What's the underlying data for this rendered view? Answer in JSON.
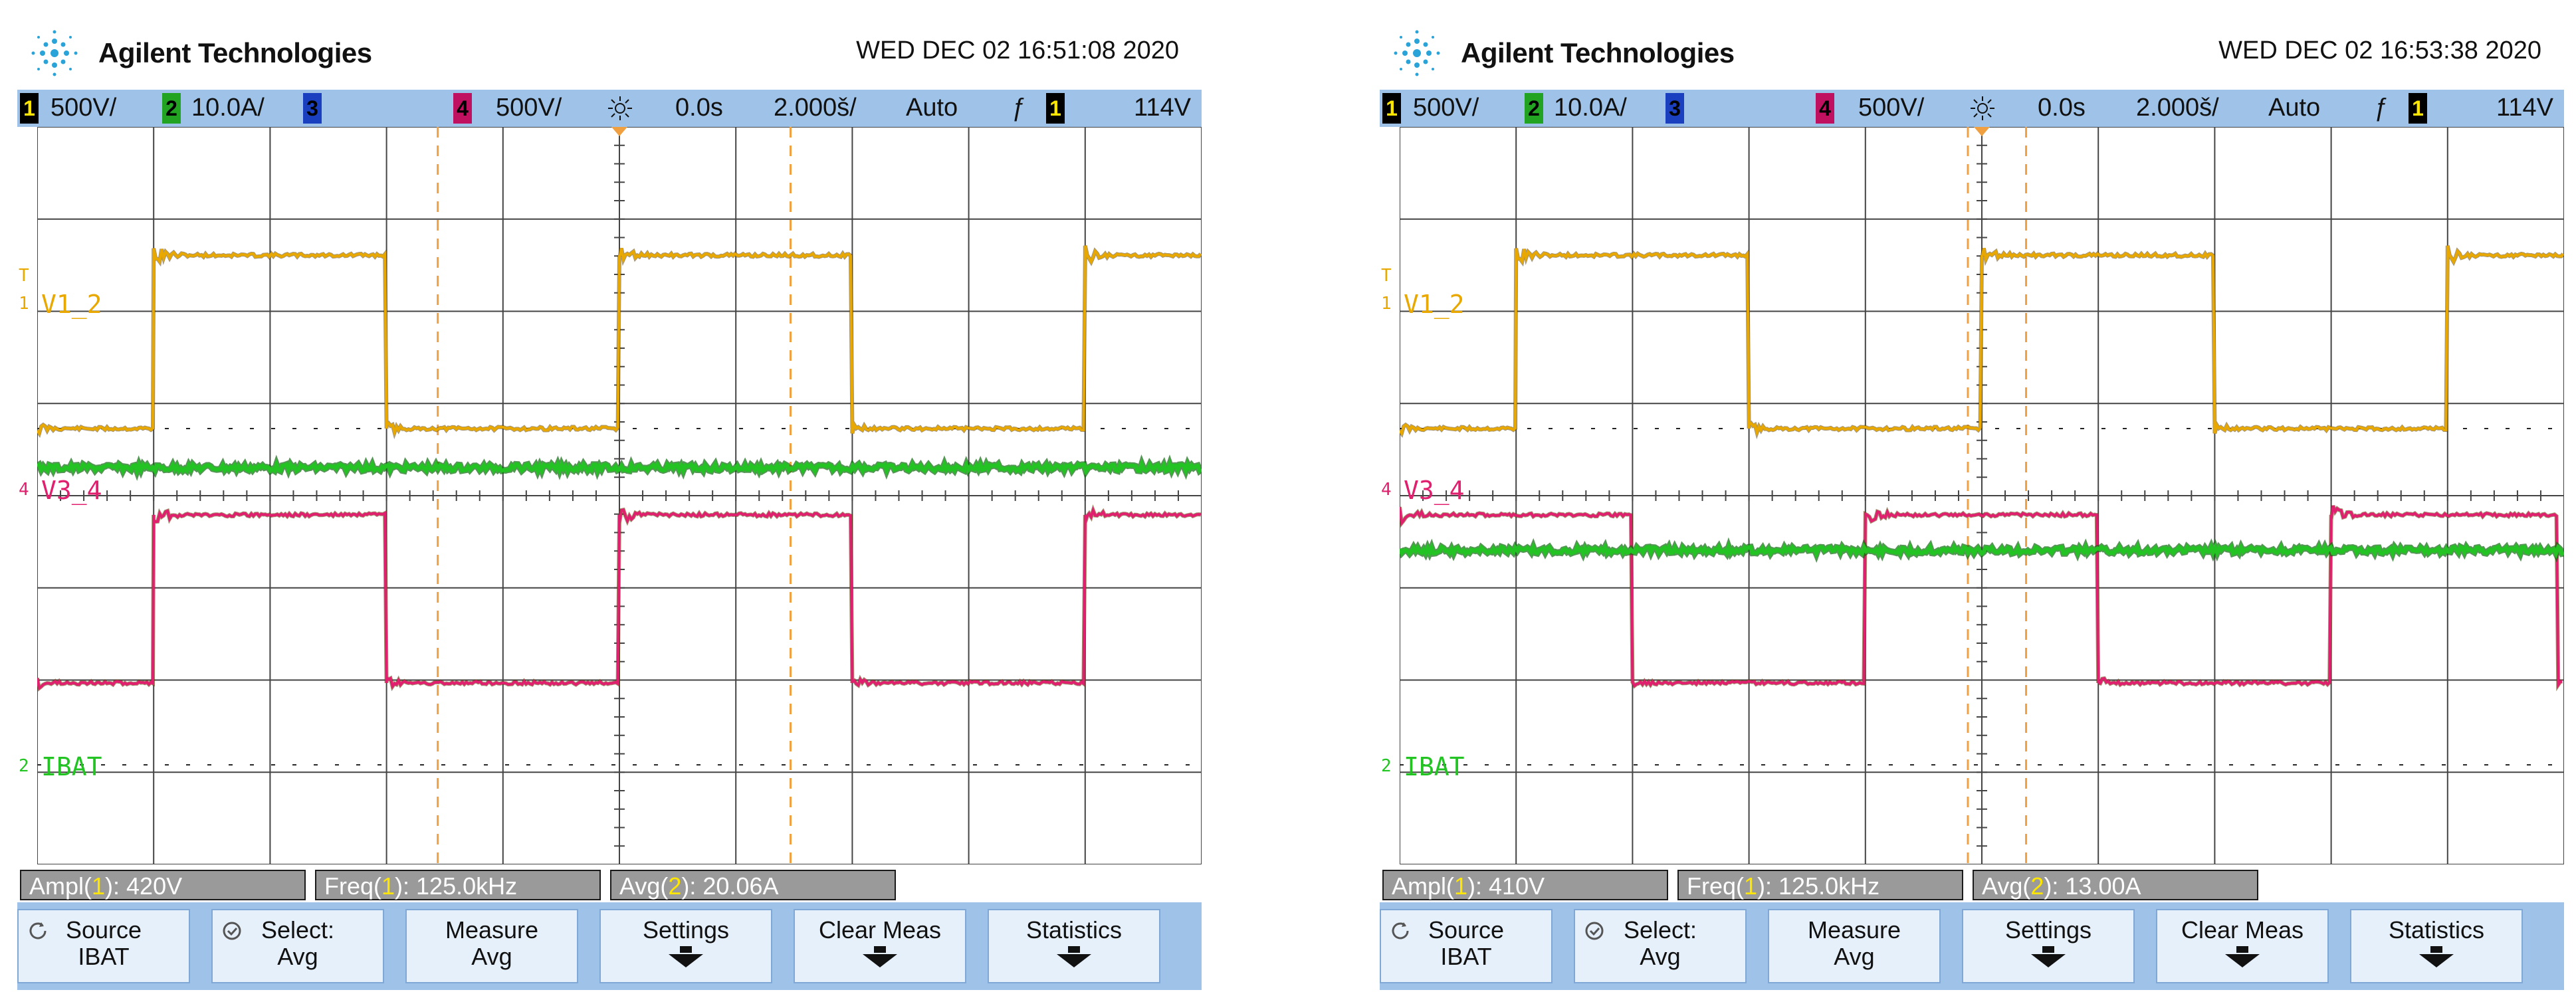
{
  "screens": [
    {
      "brand": "Agilent Technologies",
      "datetime": "WED DEC 02 16:51:08 2020",
      "status": {
        "ch1_num": "1",
        "ch1_scale": "500V/",
        "ch2_num": "2",
        "ch2_scale": "10.0A/",
        "ch3_num": "3",
        "ch4_num": "4",
        "ch4_scale": "500V/",
        "delay": "0.0s",
        "timebase": "2.000š/",
        "trigger_mode": "Auto",
        "trigger_edge": "ƒ",
        "trig_src": "1",
        "trig_level": "114V"
      },
      "labels": {
        "trig_marker": "T",
        "v12": "V1_2",
        "v34": "V3_4",
        "ibat": "IBAT",
        "ch1_gnd": "1",
        "ch4_gnd": "4",
        "ch2_gnd": "2"
      },
      "measurements": {
        "m1_pre": "Ampl(",
        "m1_ch": "1",
        "m1_post": "): 420V",
        "m2_pre": "Freq(",
        "m2_ch": "1",
        "m2_post": "): 125.0kHz",
        "m3_pre": "Avg(",
        "m3_ch": "2",
        "m3_post": "): 20.06A"
      },
      "softkeys": {
        "source_l1": "Source",
        "source_l2": "IBAT",
        "select_l1": "Select:",
        "select_l2": "Avg",
        "measure_l1": "Measure",
        "measure_l2": "Avg",
        "settings": "Settings",
        "clear": "Clear Meas",
        "statistics": "Statistics"
      },
      "waveforms": {
        "ch1_phase": 0,
        "ch4_phase": 0,
        "ch2_level": 0.462
      }
    },
    {
      "brand": "Agilent Technologies",
      "datetime": "WED DEC 02 16:53:38 2020",
      "status": {
        "ch1_num": "1",
        "ch1_scale": "500V/",
        "ch2_num": "2",
        "ch2_scale": "10.0A/",
        "ch3_num": "3",
        "ch4_num": "4",
        "ch4_scale": "500V/",
        "delay": "0.0s",
        "timebase": "2.000š/",
        "trigger_mode": "Auto",
        "trigger_edge": "ƒ",
        "trig_src": "1",
        "trig_level": "114V"
      },
      "labels": {
        "trig_marker": "T",
        "v12": "V1_2",
        "v34": "V3_4",
        "ibat": "IBAT",
        "ch1_gnd": "1",
        "ch4_gnd": "4",
        "ch2_gnd": "2"
      },
      "measurements": {
        "m1_pre": "Ampl(",
        "m1_ch": "1",
        "m1_post": "): 410V",
        "m2_pre": "Freq(",
        "m2_ch": "1",
        "m2_post": "): 125.0kHz",
        "m3_pre": "Avg(",
        "m3_ch": "2",
        "m3_post": "): 13.00A"
      },
      "softkeys": {
        "source_l1": "Source",
        "source_l2": "IBAT",
        "select_l1": "Select:",
        "select_l2": "Avg",
        "measure_l1": "Measure",
        "measure_l2": "Avg",
        "settings": "Settings",
        "clear": "Clear Meas",
        "statistics": "Statistics"
      },
      "waveforms": {
        "ch1_phase": 0,
        "ch4_phase": -1,
        "ch2_level": 0.574
      }
    }
  ],
  "colors": {
    "ch1": "#e8a800",
    "ch2": "#22c322",
    "ch3": "#2255ff",
    "ch4": "#e0206e",
    "cursor": "#f0a040",
    "statusbar": "#9fc3e8",
    "softkey": "#e6f0fa"
  }
}
